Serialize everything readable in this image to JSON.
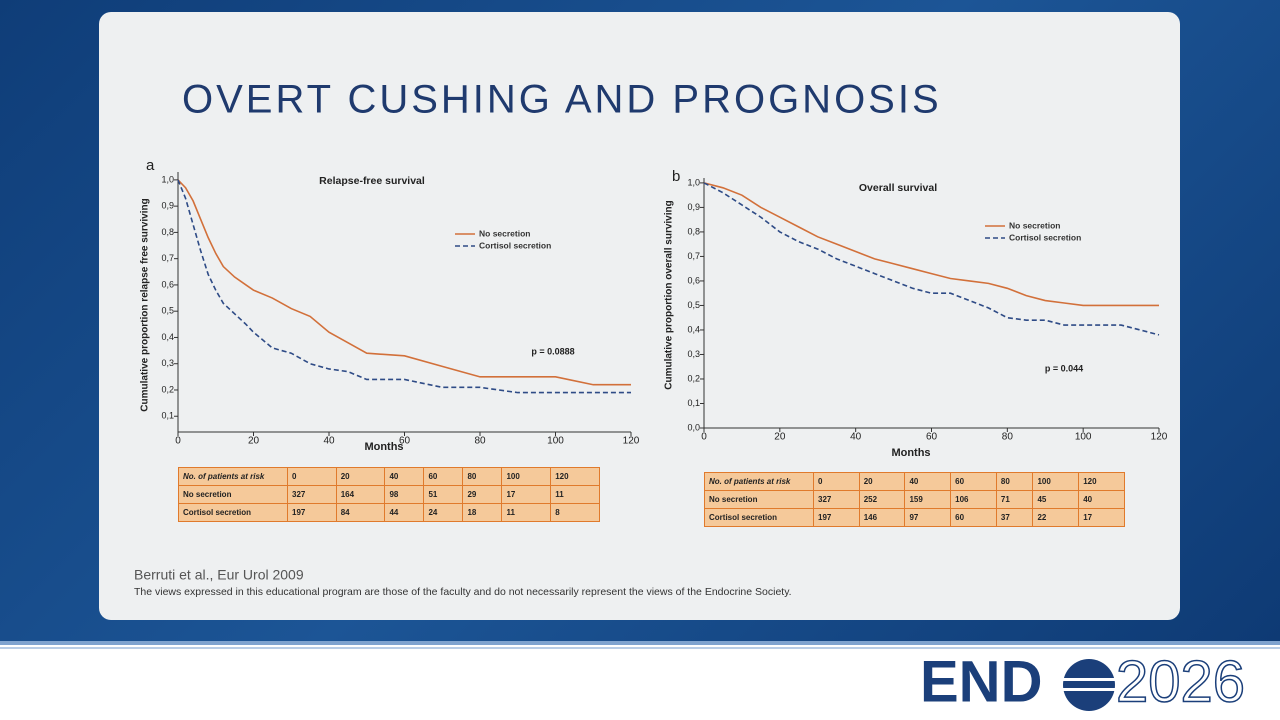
{
  "slide_title": "OVERT CUSHING AND PROGNOSIS",
  "chart_data": [
    {
      "type": "line",
      "panel_label": "a",
      "title": "Relapse-free survival",
      "annotation": "p = 0.0888",
      "y_label": "Cumulative proportion relapse free surviving",
      "x_label": "Months",
      "x": [
        0,
        2,
        4,
        6,
        8,
        10,
        12,
        15,
        18,
        20,
        25,
        30,
        35,
        40,
        45,
        50,
        60,
        70,
        75,
        80,
        90,
        100,
        110,
        120
      ],
      "series": [
        {
          "name": "No secretion",
          "color": "#d2703a",
          "linestyle": "solid",
          "values": [
            1.0,
            0.97,
            0.92,
            0.85,
            0.78,
            0.72,
            0.67,
            0.63,
            0.6,
            0.58,
            0.55,
            0.51,
            0.48,
            0.42,
            0.38,
            0.34,
            0.33,
            0.29,
            0.27,
            0.25,
            0.25,
            0.25,
            0.22,
            0.22
          ]
        },
        {
          "name": "Cortisol secretion",
          "color": "#2e4b86",
          "linestyle": "dashed",
          "values": [
            1.0,
            0.93,
            0.83,
            0.73,
            0.64,
            0.58,
            0.53,
            0.49,
            0.45,
            0.42,
            0.36,
            0.34,
            0.3,
            0.28,
            0.27,
            0.24,
            0.24,
            0.21,
            0.21,
            0.21,
            0.19,
            0.19,
            0.19,
            0.19
          ]
        }
      ],
      "xlim": [
        0,
        120
      ],
      "xticks": [
        0,
        20,
        40,
        60,
        80,
        100,
        120
      ],
      "ylim": [
        0.04,
        1.03
      ],
      "yticks": [
        {
          "value": 0.1,
          "label": "0,1"
        },
        {
          "value": 0.2,
          "label": "0,2"
        },
        {
          "value": 0.3,
          "label": "0,3"
        },
        {
          "value": 0.4,
          "label": "0,4"
        },
        {
          "value": 0.5,
          "label": "0,5"
        },
        {
          "value": 0.6,
          "label": "0,6"
        },
        {
          "value": 0.7,
          "label": "0,7"
        },
        {
          "value": 0.8,
          "label": "0,8"
        },
        {
          "value": 0.9,
          "label": "0,9"
        },
        {
          "value": 1.0,
          "label": "1,0"
        }
      ],
      "grid": false,
      "table": {
        "header": [
          "No. of patients at risk",
          "0",
          "20",
          "40",
          "60",
          "80",
          "100",
          "120"
        ],
        "rows": [
          [
            "No secretion",
            "327",
            "164",
            "98",
            "51",
            "29",
            "17",
            "11"
          ],
          [
            "Cortisol secretion",
            "197",
            "84",
            "44",
            "24",
            "18",
            "11",
            "8"
          ]
        ]
      }
    },
    {
      "type": "line",
      "panel_label": "b",
      "title": "Overall survival",
      "annotation": "p = 0.044",
      "y_label": "Cumulative proportion overall surviving",
      "x_label": "Months",
      "x": [
        0,
        5,
        10,
        15,
        20,
        25,
        30,
        35,
        40,
        45,
        50,
        55,
        60,
        65,
        70,
        75,
        80,
        85,
        90,
        95,
        100,
        110,
        120
      ],
      "series": [
        {
          "name": "No secretion",
          "color": "#d2703a",
          "linestyle": "solid",
          "values": [
            1.0,
            0.98,
            0.95,
            0.9,
            0.86,
            0.82,
            0.78,
            0.75,
            0.72,
            0.69,
            0.67,
            0.65,
            0.63,
            0.61,
            0.6,
            0.59,
            0.57,
            0.54,
            0.52,
            0.51,
            0.5,
            0.5,
            0.5
          ]
        },
        {
          "name": "Cortisol secretion",
          "color": "#2e4b86",
          "linestyle": "dashed",
          "values": [
            1.0,
            0.96,
            0.91,
            0.86,
            0.8,
            0.76,
            0.73,
            0.69,
            0.66,
            0.63,
            0.6,
            0.57,
            0.55,
            0.55,
            0.52,
            0.49,
            0.45,
            0.44,
            0.44,
            0.42,
            0.42,
            0.42,
            0.38
          ]
        }
      ],
      "xlim": [
        0,
        120
      ],
      "xticks": [
        0,
        20,
        40,
        60,
        80,
        100,
        120
      ],
      "ylim": [
        0,
        1.02
      ],
      "yticks": [
        {
          "value": 0,
          "label": "0,0"
        },
        {
          "value": 0.1,
          "label": "0,1"
        },
        {
          "value": 0.2,
          "label": "0,2"
        },
        {
          "value": 0.3,
          "label": "0,3"
        },
        {
          "value": 0.4,
          "label": "0,4"
        },
        {
          "value": 0.5,
          "label": "0,5"
        },
        {
          "value": 0.6,
          "label": "0,6"
        },
        {
          "value": 0.7,
          "label": "0,7"
        },
        {
          "value": 0.8,
          "label": "0,8"
        },
        {
          "value": 0.9,
          "label": "0,9"
        },
        {
          "value": 1.0,
          "label": "1,0"
        }
      ],
      "grid": false,
      "table": {
        "header": [
          "No. of patients at risk",
          "0",
          "20",
          "40",
          "60",
          "80",
          "100",
          "120"
        ],
        "rows": [
          [
            "No secretion",
            "327",
            "252",
            "159",
            "106",
            "71",
            "45",
            "40"
          ],
          [
            "Cortisol secretion",
            "197",
            "146",
            "97",
            "60",
            "37",
            "22",
            "17"
          ]
        ]
      }
    }
  ],
  "citation": "Berruti et al., Eur Urol 2009",
  "disclaimer": "The views expressed in this educational program are those of the faculty and do not necessarily represent the views of the Endocrine Society.",
  "logo": {
    "left": "END",
    "right": "2026"
  }
}
